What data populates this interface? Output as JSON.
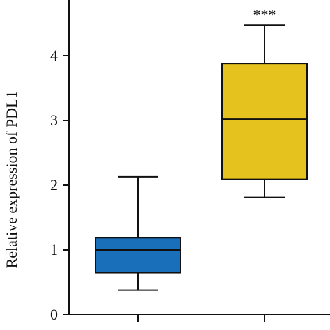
{
  "chart_data": {
    "type": "box",
    "xlabel": "",
    "ylabel": "Relative expression of PDL1",
    "ylim": [
      0,
      5
    ],
    "yticks": [
      0,
      1,
      2,
      3,
      4
    ],
    "ytick_labels": [
      "0",
      "1",
      "2",
      "3",
      "4"
    ],
    "grid": false,
    "legend": "none",
    "categories": [
      "",
      ""
    ],
    "boxes": [
      {
        "whisker_low": 0.38,
        "q1": 0.65,
        "median": 1.0,
        "q3": 1.19,
        "whisker_high": 2.13,
        "color": "#1a6fba"
      },
      {
        "whisker_low": 1.81,
        "q1": 2.09,
        "median": 3.02,
        "q3": 3.88,
        "whisker_high": 4.47,
        "color": "#e6c21f"
      }
    ],
    "annotations": [
      {
        "box": 1,
        "text": "***"
      }
    ]
  }
}
